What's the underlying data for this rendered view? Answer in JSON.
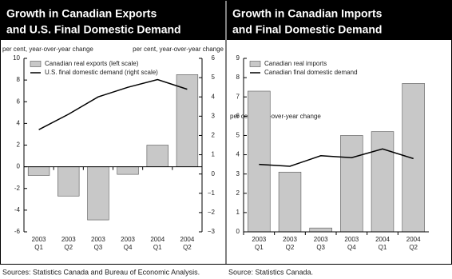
{
  "chart_data": [
    {
      "type": "bar_line",
      "title": [
        "Growth in Canadian Exports",
        "and U.S. Final Domestic Demand"
      ],
      "y_label": "per cent, year-over-year change",
      "y2_label": "per cent, year-over-year change",
      "categories": [
        [
          "2003",
          "Q1"
        ],
        [
          "2003",
          "Q2"
        ],
        [
          "2003",
          "Q3"
        ],
        [
          "2003",
          "Q4"
        ],
        [
          "2004",
          "Q1"
        ],
        [
          "2004",
          "Q2"
        ]
      ],
      "series": [
        {
          "name": "Canadian real exports (left scale)",
          "color": "#c8c8c8",
          "values": [
            -0.8,
            -2.7,
            -4.9,
            -0.7,
            2.0,
            8.5
          ]
        },
        {
          "name": "U.S. final domestic demand (right scale)",
          "color": "#000000",
          "axis": "y2",
          "values": [
            2.3,
            3.1,
            4.0,
            4.5,
            4.9,
            4.4
          ]
        }
      ],
      "ylim": [
        -6,
        10
      ],
      "yticks": [
        -6,
        -4,
        -2,
        0,
        2,
        4,
        6,
        8,
        10
      ],
      "y2lim": [
        -3,
        6
      ],
      "y2ticks": [
        {
          "value": -3,
          "label": "−3"
        },
        {
          "value": -2,
          "label": "−2"
        },
        {
          "value": -1,
          "label": "−1"
        },
        0,
        1,
        2,
        3,
        4,
        5,
        6
      ],
      "source": "Sources: Statistics Canada and Bureau of Economic Analysis."
    },
    {
      "type": "bar_line",
      "title": [
        "Growth in Canadian Imports",
        "and Final Domestic Demand"
      ],
      "y_label": "per cent, year-over-year change",
      "categories": [
        [
          "2003",
          "Q1"
        ],
        [
          "2003",
          "Q2"
        ],
        [
          "2003",
          "Q3"
        ],
        [
          "2003",
          "Q4"
        ],
        [
          "2004",
          "Q1"
        ],
        [
          "2004",
          "Q2"
        ]
      ],
      "series": [
        {
          "name": "Canadian real imports",
          "color": "#c8c8c8",
          "values": [
            7.3,
            3.1,
            0.2,
            5.0,
            5.2,
            7.7
          ]
        },
        {
          "name": "Canadian final domestic demand",
          "color": "#000000",
          "values": [
            3.5,
            3.4,
            3.95,
            3.85,
            4.3,
            3.8
          ]
        }
      ],
      "ylim": [
        0,
        9
      ],
      "yticks": [
        0,
        1,
        2,
        3,
        4,
        5,
        6,
        7,
        8,
        9
      ],
      "source": "Source: Statistics Canada."
    }
  ]
}
